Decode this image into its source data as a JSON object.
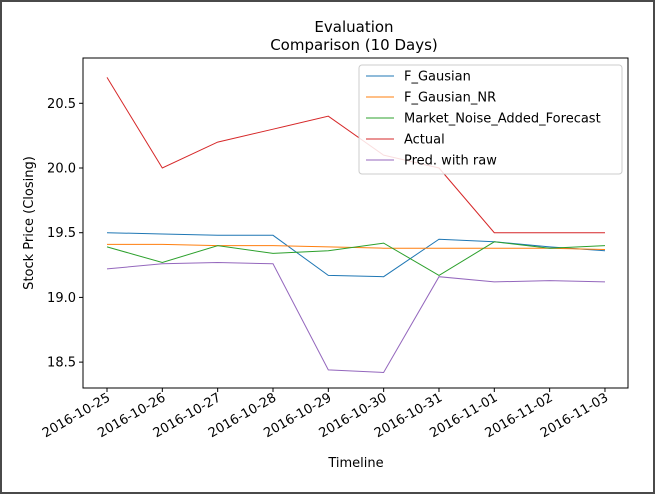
{
  "chart_data": {
    "type": "line",
    "title": "Evaluation",
    "subtitle": "Comparison (10 Days)",
    "xlabel": "Timeline",
    "ylabel": "Stock Price (Closing)",
    "ylim": [
      18.3,
      20.85
    ],
    "yticks": [
      "18.5",
      "19.0",
      "19.5",
      "20.0",
      "20.5"
    ],
    "grid": false,
    "legend_position": "top-right",
    "x": [
      "2016-10-25",
      "2016-10-26",
      "2016-10-27",
      "2016-10-28",
      "2016-10-29",
      "2016-10-30",
      "2016-10-31",
      "2016-11-01",
      "2016-11-02",
      "2016-11-03"
    ],
    "series": [
      {
        "name": "F_Gausian",
        "color": "#1f77b4",
        "values": [
          19.5,
          19.49,
          19.48,
          19.48,
          19.17,
          19.16,
          19.45,
          19.43,
          19.39,
          19.36
        ]
      },
      {
        "name": "F_Gausian_NR",
        "color": "#ff7f0e",
        "values": [
          19.41,
          19.41,
          19.4,
          19.4,
          19.39,
          19.38,
          19.38,
          19.38,
          19.38,
          19.37
        ]
      },
      {
        "name": "Market_Noise_Added_Forecast",
        "color": "#2ca02c",
        "values": [
          19.39,
          19.27,
          19.4,
          19.34,
          19.36,
          19.42,
          19.17,
          19.43,
          19.38,
          19.4
        ]
      },
      {
        "name": "Actual",
        "color": "#d62728",
        "values": [
          20.7,
          20.0,
          20.2,
          20.3,
          20.4,
          20.1,
          20.0,
          19.5,
          19.5,
          19.5
        ]
      },
      {
        "name": "Pred. with raw",
        "color": "#9467bd",
        "values": [
          19.22,
          19.26,
          19.27,
          19.26,
          18.44,
          18.42,
          19.16,
          19.12,
          19.13,
          19.12
        ]
      }
    ]
  }
}
